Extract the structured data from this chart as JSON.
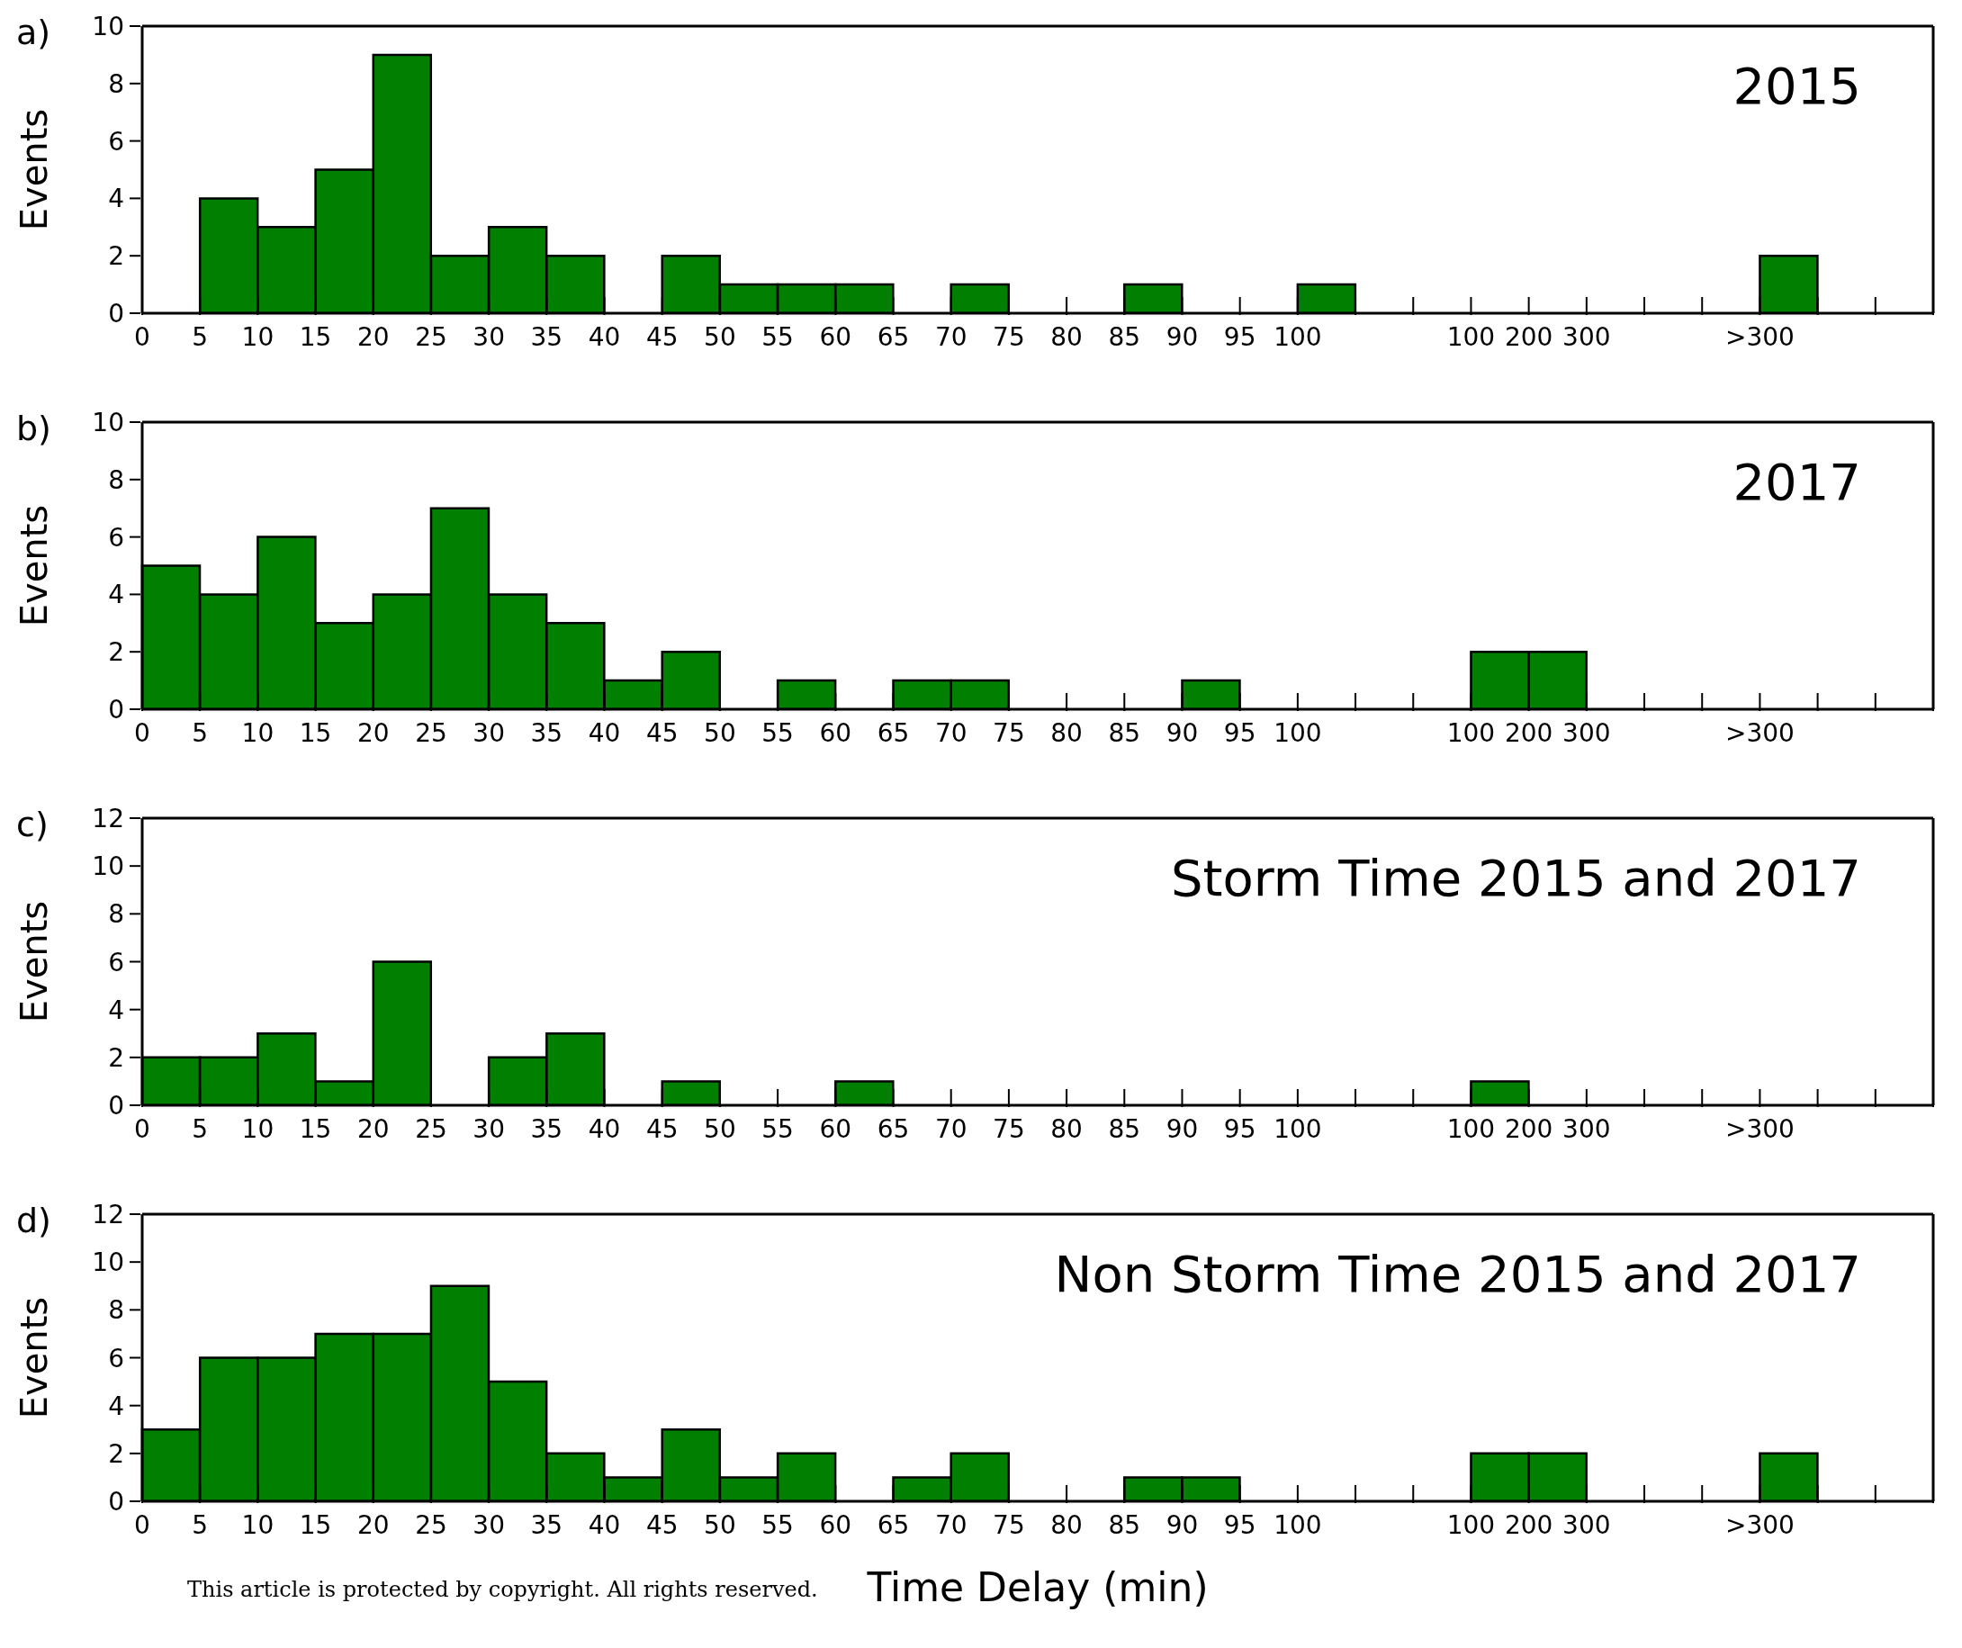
{
  "chart_data": [
    {
      "type": "bar",
      "title": "2015",
      "ylabel": "Events",
      "annotations": [
        "a)"
      ],
      "categories": [
        "0",
        "5",
        "10",
        "15",
        "20",
        "25",
        "30",
        "35",
        "40",
        "45",
        "50",
        "55",
        "60",
        "65",
        "70",
        "75",
        "80",
        "85",
        "90",
        "95",
        "100",
        null,
        null,
        "100",
        "200",
        "300",
        null,
        null,
        ">300",
        null,
        null
      ],
      "values": [
        0,
        4,
        3,
        5,
        9,
        2,
        3,
        2,
        0,
        2,
        1,
        1,
        1,
        0,
        1,
        0,
        0,
        1,
        0,
        0,
        1,
        0,
        0,
        0,
        0,
        0,
        0,
        0,
        2,
        0,
        0
      ],
      "color": "#007f00",
      "ylim": [
        0,
        10
      ],
      "yticks": [
        0,
        2,
        4,
        6,
        8,
        10
      ],
      "grid": false,
      "legend": false
    },
    {
      "type": "bar",
      "title": "2017",
      "ylabel": "Events",
      "annotations": [
        "b)"
      ],
      "categories": [
        "0",
        "5",
        "10",
        "15",
        "20",
        "25",
        "30",
        "35",
        "40",
        "45",
        "50",
        "55",
        "60",
        "65",
        "70",
        "75",
        "80",
        "85",
        "90",
        "95",
        "100",
        null,
        null,
        "100",
        "200",
        "300",
        null,
        null,
        ">300",
        null,
        null
      ],
      "values": [
        5,
        4,
        6,
        3,
        4,
        7,
        4,
        3,
        1,
        2,
        0,
        1,
        0,
        1,
        1,
        0,
        0,
        0,
        1,
        0,
        0,
        0,
        0,
        2,
        2,
        0,
        0,
        0,
        0,
        0,
        0
      ],
      "color": "#007f00",
      "ylim": [
        0,
        10
      ],
      "yticks": [
        0,
        2,
        4,
        6,
        8,
        10
      ],
      "grid": false,
      "legend": false
    },
    {
      "type": "bar",
      "title": "Storm Time 2015 and 2017",
      "ylabel": "Events",
      "annotations": [
        "c)"
      ],
      "categories": [
        "0",
        "5",
        "10",
        "15",
        "20",
        "25",
        "30",
        "35",
        "40",
        "45",
        "50",
        "55",
        "60",
        "65",
        "70",
        "75",
        "80",
        "85",
        "90",
        "95",
        "100",
        null,
        null,
        "100",
        "200",
        "300",
        null,
        null,
        ">300",
        null,
        null
      ],
      "values": [
        2,
        2,
        3,
        1,
        6,
        0,
        2,
        3,
        0,
        1,
        0,
        0,
        1,
        0,
        0,
        0,
        0,
        0,
        0,
        0,
        0,
        0,
        0,
        1,
        0,
        0,
        0,
        0,
        0,
        0,
        0
      ],
      "color": "#007f00",
      "ylim": [
        0,
        12
      ],
      "yticks": [
        0,
        2,
        4,
        6,
        8,
        10,
        12
      ],
      "grid": false,
      "legend": false
    },
    {
      "type": "bar",
      "title": "Non Storm Time 2015 and 2017",
      "xlabel": "Time Delay (min)",
      "ylabel": "Events",
      "annotations": [
        "d)",
        "This article is protected by copyright. All rights reserved."
      ],
      "categories": [
        "0",
        "5",
        "10",
        "15",
        "20",
        "25",
        "30",
        "35",
        "40",
        "45",
        "50",
        "55",
        "60",
        "65",
        "70",
        "75",
        "80",
        "85",
        "90",
        "95",
        "100",
        null,
        null,
        "100",
        "200",
        "300",
        null,
        null,
        ">300",
        null,
        null
      ],
      "values": [
        3,
        6,
        6,
        7,
        7,
        9,
        5,
        2,
        1,
        3,
        1,
        2,
        0,
        1,
        2,
        0,
        0,
        1,
        1,
        0,
        0,
        0,
        0,
        2,
        2,
        0,
        0,
        0,
        2,
        0,
        0
      ],
      "color": "#007f00",
      "ylim": [
        0,
        12
      ],
      "yticks": [
        0,
        2,
        4,
        6,
        8,
        10,
        12
      ],
      "grid": false,
      "legend": false
    }
  ]
}
